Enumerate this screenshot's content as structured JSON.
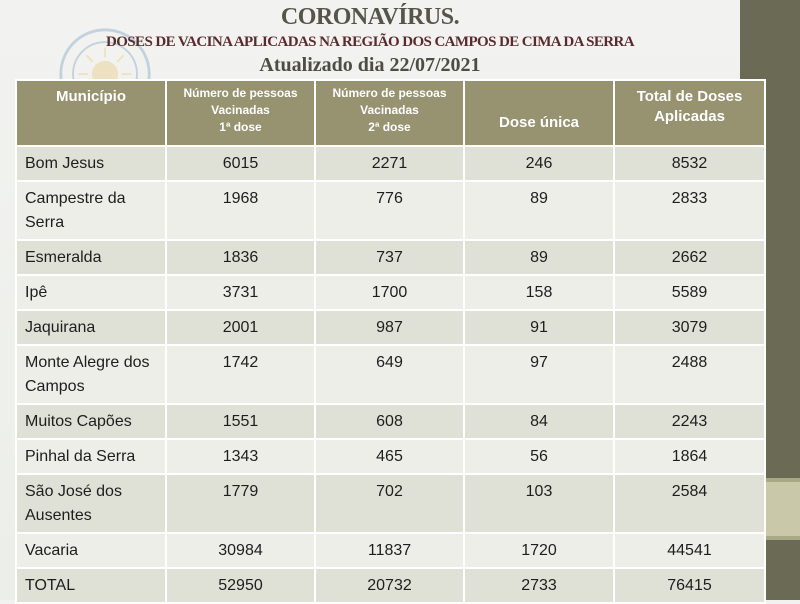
{
  "title": "CORONAVÍRUS.",
  "subtitle": "DOSES DE VACINA APLICADAS NA REGIÃO DOS CAMPOS DE CIMA DA SERRA",
  "updated": "Atualizado dia 22/07/2021",
  "colors": {
    "header_bg": "#97926f",
    "band": "#6b6a55",
    "row_odd": "#dfe1d6",
    "row_even": "#edeee7"
  },
  "emblem_icon": "watermark-seal-icon",
  "table": {
    "headers": {
      "municipio": "Município",
      "dose1": [
        "Número de pessoas",
        "Vacinadas",
        "1ª dose"
      ],
      "dose2": [
        "Número de pessoas",
        "Vacinadas",
        "2ª dose"
      ],
      "unica": "Dose única",
      "total": [
        "Total de Doses",
        "Aplicadas"
      ]
    },
    "rows": [
      {
        "municipio": "Bom Jesus",
        "dose1": "6015",
        "dose2": "2271",
        "unica": "246",
        "total": "8532"
      },
      {
        "municipio": "Campestre da Serra",
        "dose1": "1968",
        "dose2": "776",
        "unica": "89",
        "total": "2833"
      },
      {
        "municipio": "Esmeralda",
        "dose1": "1836",
        "dose2": "737",
        "unica": "89",
        "total": "2662"
      },
      {
        "municipio": "Ipê",
        "dose1": "3731",
        "dose2": "1700",
        "unica": "158",
        "total": "5589"
      },
      {
        "municipio": "Jaquirana",
        "dose1": "2001",
        "dose2": "987",
        "unica": "91",
        "total": "3079"
      },
      {
        "municipio": "Monte Alegre dos Campos",
        "dose1": "1742",
        "dose2": "649",
        "unica": "97",
        "total": "2488"
      },
      {
        "municipio": "Muitos Capões",
        "dose1": "1551",
        "dose2": "608",
        "unica": "84",
        "total": "2243"
      },
      {
        "municipio": "Pinhal da Serra",
        "dose1": "1343",
        "dose2": "465",
        "unica": "56",
        "total": "1864"
      },
      {
        "municipio": "São José dos Ausentes",
        "dose1": "1779",
        "dose2": "702",
        "unica": "103",
        "total": "2584"
      },
      {
        "municipio": "Vacaria",
        "dose1": "30984",
        "dose2": "11837",
        "unica": "1720",
        "total": "44541"
      },
      {
        "municipio": "TOTAL",
        "dose1": "52950",
        "dose2": "20732",
        "unica": "2733",
        "total": "76415"
      }
    ]
  }
}
